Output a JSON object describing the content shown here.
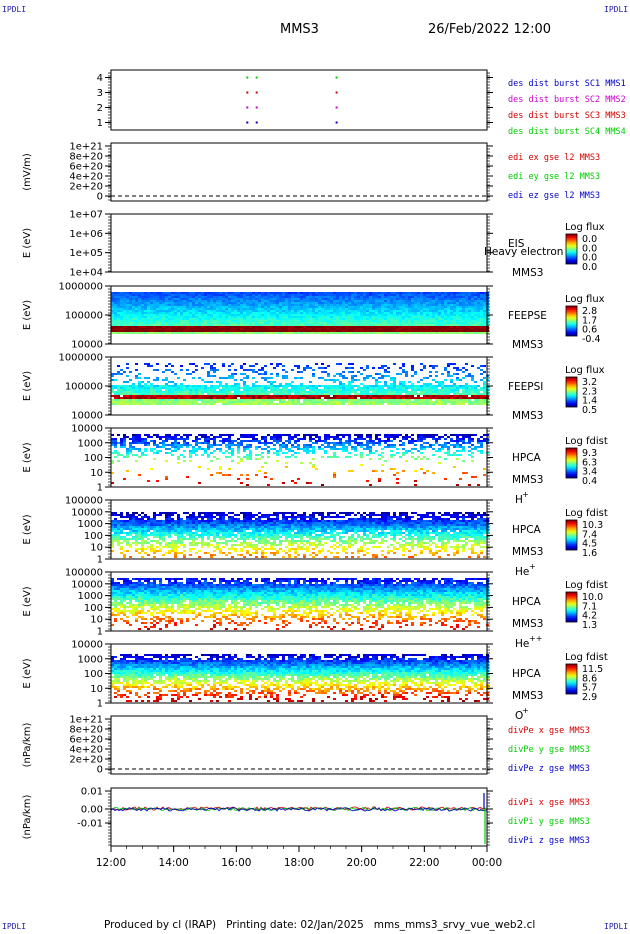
{
  "header": {
    "corner_label": "IPDLI",
    "title": "MMS3",
    "date": "26/Feb/2022 12:00"
  },
  "footer": {
    "text": "Produced by cl (IRAP)   Printing date: 02/Jan/2025   mms_mms3_srvy_vue_web2.cl"
  },
  "colors": {
    "red": "#d40000",
    "green": "#00cc00",
    "blue": "#0000cc",
    "magenta": "#cc00cc"
  },
  "chart_data": [
    {
      "type": "scatter",
      "id": "burst",
      "yticks": [
        "1",
        "2",
        "3",
        "4"
      ],
      "ylabel": "",
      "ylim": [
        0.5,
        4.5
      ],
      "series": [
        {
          "name": "des dist burst SC1 MMS1",
          "color": "#0000cc",
          "y": 1,
          "x_hours": [
            4.35,
            4.65,
            7.2
          ]
        },
        {
          "name": "des dist burst SC2 MMS2",
          "color": "#cc00cc",
          "y": 2,
          "x_hours": [
            4.35,
            4.65,
            7.2
          ]
        },
        {
          "name": "des dist burst SC3 MMS3",
          "color": "#d40000",
          "y": 3,
          "x_hours": [
            4.35,
            4.65,
            7.2
          ]
        },
        {
          "name": "des dist burst SC4 MMS4",
          "color": "#00cc00",
          "y": 4,
          "x_hours": [
            4.35,
            4.65,
            7.2
          ]
        }
      ]
    },
    {
      "type": "line",
      "id": "edi",
      "ylabel": "(mV/m)",
      "yticks": [
        "0",
        "2e+20",
        "4e+20",
        "6e+20",
        "8e+20",
        "1e+21"
      ],
      "ylim": [
        0,
        1e+21
      ],
      "series": [
        {
          "name": "edi ex gse l2 MMS3",
          "color": "#d40000"
        },
        {
          "name": "edi ey gse l2 MMS3",
          "color": "#00cc00"
        },
        {
          "name": "edi ez gse l2 MMS3",
          "color": "#0000cc"
        }
      ]
    },
    {
      "type": "heatmap",
      "id": "eis",
      "ylabel": "E (eV)",
      "yticks": [
        "1e+04",
        "1e+05",
        "1e+06",
        "1e+07"
      ],
      "instrument": "EIS",
      "overlay_label": "Heavy electron to",
      "spacecraft": "MMS3",
      "colorbar_title": "Log flux",
      "colorbar_ticks": [
        "0.0",
        "0.0",
        "0.0",
        "0.0"
      ]
    },
    {
      "type": "heatmap",
      "id": "feepse",
      "ylabel": "E (eV)",
      "yticks": [
        "10000",
        "100000",
        "1000000"
      ],
      "instrument": "FEEPSE",
      "spacecraft": "MMS3",
      "colorbar_title": "Log flux",
      "colorbar_ticks": [
        "2.8",
        "1.7",
        "0.6",
        "-0.4"
      ]
    },
    {
      "type": "heatmap",
      "id": "feepsi",
      "ylabel": "E (eV)",
      "yticks": [
        "10000",
        "100000",
        "1000000"
      ],
      "instrument": "FEEPSI",
      "spacecraft": "MMS3",
      "colorbar_title": "Log flux",
      "colorbar_ticks": [
        "3.2",
        "2.3",
        "1.4",
        "0.5"
      ]
    },
    {
      "type": "heatmap",
      "id": "hpca_h",
      "ylabel": "E (eV)",
      "yticks": [
        "1",
        "10",
        "100",
        "1000",
        "10000"
      ],
      "instrument": "HPCA",
      "spacecraft": "MMS3",
      "species": "H",
      "species_sup": "+",
      "colorbar_title": "Log fdist",
      "colorbar_ticks": [
        "9.3",
        "6.3",
        "3.4",
        "0.4"
      ]
    },
    {
      "type": "heatmap",
      "id": "hpca_he",
      "ylabel": "E (eV)",
      "yticks": [
        "1",
        "10",
        "100",
        "1000",
        "10000",
        "100000"
      ],
      "instrument": "HPCA",
      "spacecraft": "MMS3",
      "species": "He",
      "species_sup": "+",
      "colorbar_title": "Log fdist",
      "colorbar_ticks": [
        "10.3",
        "7.4",
        "4.5",
        "1.6"
      ]
    },
    {
      "type": "heatmap",
      "id": "hpca_hepp",
      "ylabel": "E (eV)",
      "yticks": [
        "1",
        "10",
        "100",
        "1000",
        "10000",
        "100000"
      ],
      "instrument": "HPCA",
      "spacecraft": "MMS3",
      "species": "He",
      "species_sup": "++",
      "colorbar_title": "Log fdist",
      "colorbar_ticks": [
        "10.0",
        "7.1",
        "4.2",
        "1.3"
      ]
    },
    {
      "type": "heatmap",
      "id": "hpca_o",
      "ylabel": "E (eV)",
      "yticks": [
        "1",
        "10",
        "100",
        "1000",
        "10000"
      ],
      "instrument": "HPCA",
      "spacecraft": "MMS3",
      "species": "O",
      "species_sup": "+",
      "colorbar_title": "Log fdist",
      "colorbar_ticks": [
        "11.5",
        "8.6",
        "5.7",
        "2.9"
      ]
    },
    {
      "type": "line",
      "id": "divpe",
      "ylabel": "(nPa/km)",
      "yticks": [
        "0",
        "2e+20",
        "4e+20",
        "6e+20",
        "8e+20",
        "1e+21"
      ],
      "ylim": [
        0,
        1e+21
      ],
      "series": [
        {
          "name": "divPe x gse MMS3",
          "color": "#d40000"
        },
        {
          "name": "divPe y gse MMS3",
          "color": "#00cc00"
        },
        {
          "name": "divPe z gse MMS3",
          "color": "#0000cc"
        }
      ]
    },
    {
      "type": "line",
      "id": "divpi",
      "ylabel": "(nPa/km)",
      "yticks": [
        "-0.01",
        "0.00",
        "0.01"
      ],
      "ylim": [
        -0.02,
        0.012
      ],
      "series": [
        {
          "name": "divPi x gse MMS3",
          "color": "#d40000"
        },
        {
          "name": "divPi y gse MMS3",
          "color": "#00cc00"
        },
        {
          "name": "divPi z gse MMS3",
          "color": "#0000cc"
        }
      ]
    }
  ],
  "time_axis": {
    "ticks": [
      "12:00",
      "14:00",
      "16:00",
      "18:00",
      "20:00",
      "22:00",
      "00:00"
    ]
  }
}
